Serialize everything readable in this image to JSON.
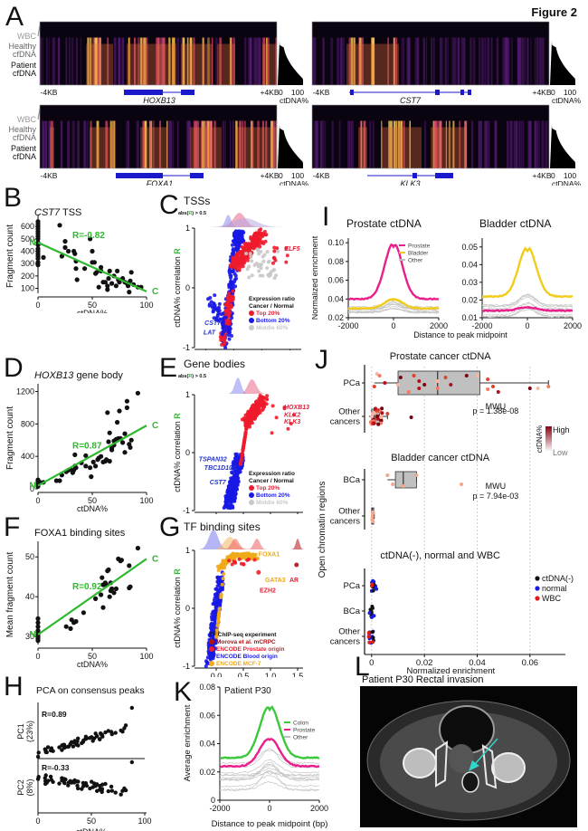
{
  "figure_title": "Figure 2",
  "panel_letters": [
    "A",
    "B",
    "C",
    "D",
    "E",
    "F",
    "G",
    "H",
    "I",
    "J",
    "K",
    "L"
  ],
  "panel_A": {
    "row_labels": {
      "wbc": "WBC",
      "healthy": "Healthy\ncfDNA",
      "patient": "Patient\ncfDNA"
    },
    "heatmaps": [
      {
        "gene": "HOXB13",
        "left": "-4KB",
        "right": "+4KB",
        "bar_min": "0",
        "bar_max": "100",
        "bar_label": "ctDNA%"
      },
      {
        "gene": "CST7",
        "left": "-4KB",
        "right": "+4KB",
        "bar_min": "0",
        "bar_max": "100",
        "bar_label": "ctDNA%"
      },
      {
        "gene": "FOXA1",
        "left": "-4KB",
        "right": "+4KB",
        "bar_min": "0",
        "bar_max": "100",
        "bar_label": "ctDNA%"
      },
      {
        "gene": "KLK3",
        "left": "-4KB",
        "right": "+4KB",
        "bar_min": "0",
        "bar_max": "100",
        "bar_label": "ctDNA%"
      }
    ]
  },
  "chart_data": [
    {
      "id": "B",
      "type": "scatter",
      "title_gene": "CST7",
      "title_rest": " TSS",
      "xlabel": "ctDNA%",
      "ylabel": "Fragment count",
      "xlim": [
        0,
        100
      ],
      "ylim": [
        60,
        660
      ],
      "xticks": [
        0,
        50,
        100
      ],
      "yticks": [
        100,
        200,
        300,
        400,
        500,
        600
      ],
      "annotation": "R=-0.82",
      "line": [
        [
          0,
          470
        ],
        [
          100,
          75
        ]
      ],
      "line_start": "N",
      "line_end": "C",
      "points": [
        [
          0,
          640
        ],
        [
          0,
          620
        ],
        [
          0,
          600
        ],
        [
          0,
          580
        ],
        [
          0,
          560
        ],
        [
          0,
          540
        ],
        [
          0,
          520
        ],
        [
          0,
          500
        ],
        [
          0,
          470
        ],
        [
          0,
          450
        ],
        [
          0,
          420
        ],
        [
          0,
          400
        ],
        [
          0,
          380
        ],
        [
          0,
          360
        ],
        [
          0,
          340
        ],
        [
          0,
          310
        ],
        [
          0,
          290
        ],
        [
          5,
          350
        ],
        [
          20,
          610
        ],
        [
          22,
          360
        ],
        [
          25,
          430
        ],
        [
          25,
          480
        ],
        [
          28,
          400
        ],
        [
          33,
          400
        ],
        [
          34,
          380
        ],
        [
          35,
          260
        ],
        [
          35,
          320
        ],
        [
          36,
          170
        ],
        [
          43,
          260
        ],
        [
          48,
          500
        ],
        [
          50,
          310
        ],
        [
          50,
          400
        ],
        [
          52,
          310
        ],
        [
          53,
          220
        ],
        [
          54,
          230
        ],
        [
          56,
          110
        ],
        [
          58,
          270
        ],
        [
          58,
          240
        ],
        [
          60,
          150
        ],
        [
          62,
          150
        ],
        [
          64,
          120
        ],
        [
          64,
          90
        ],
        [
          65,
          180
        ],
        [
          66,
          240
        ],
        [
          68,
          140
        ],
        [
          70,
          200
        ],
        [
          72,
          120
        ],
        [
          73,
          240
        ],
        [
          74,
          170
        ],
        [
          75,
          150
        ],
        [
          78,
          180
        ],
        [
          80,
          150
        ],
        [
          82,
          140
        ],
        [
          83,
          120
        ],
        [
          84,
          70
        ],
        [
          85,
          160
        ],
        [
          86,
          230
        ],
        [
          88,
          130
        ],
        [
          92,
          110
        ],
        [
          95,
          110
        ]
      ]
    },
    {
      "id": "D",
      "type": "scatter",
      "title_gene": "HOXB13",
      "title_rest": " gene body",
      "xlabel": "ctDNA%",
      "ylabel": "Fragment count",
      "xlim": [
        0,
        100
      ],
      "ylim": [
        0,
        1250
      ],
      "xticks": [
        0,
        50,
        100
      ],
      "yticks": [
        0,
        400,
        800,
        1200
      ],
      "annotation": "R=0.87",
      "line": [
        [
          0,
          40
        ],
        [
          100,
          780
        ]
      ],
      "line_start": "N",
      "line_end": "C",
      "points": [
        [
          0,
          110
        ],
        [
          0,
          90
        ],
        [
          0,
          70
        ],
        [
          0,
          50
        ],
        [
          0,
          30
        ],
        [
          2,
          80
        ],
        [
          5,
          80
        ],
        [
          17,
          100
        ],
        [
          20,
          100
        ],
        [
          22,
          170
        ],
        [
          26,
          210
        ],
        [
          28,
          230
        ],
        [
          30,
          240
        ],
        [
          32,
          200
        ],
        [
          33,
          230
        ],
        [
          34,
          280
        ],
        [
          35,
          260
        ],
        [
          34,
          420
        ],
        [
          40,
          320
        ],
        [
          44,
          410
        ],
        [
          44,
          280
        ],
        [
          48,
          260
        ],
        [
          49,
          150
        ],
        [
          51,
          330
        ],
        [
          53,
          280
        ],
        [
          55,
          360
        ],
        [
          56,
          380
        ],
        [
          58,
          400
        ],
        [
          60,
          330
        ],
        [
          62,
          340
        ],
        [
          63,
          360
        ],
        [
          64,
          940
        ],
        [
          65,
          580
        ],
        [
          66,
          340
        ],
        [
          66,
          690
        ],
        [
          68,
          500
        ],
        [
          68,
          480
        ],
        [
          70,
          540
        ],
        [
          70,
          590
        ],
        [
          72,
          610
        ],
        [
          73,
          820
        ],
        [
          74,
          620
        ],
        [
          75,
          960
        ],
        [
          76,
          620
        ],
        [
          78,
          570
        ],
        [
          80,
          450
        ],
        [
          80,
          680
        ],
        [
          82,
          1080
        ],
        [
          82,
          1000
        ],
        [
          84,
          550
        ],
        [
          85,
          510
        ],
        [
          86,
          600
        ],
        [
          92,
          1180
        ]
      ]
    },
    {
      "id": "F",
      "type": "scatter",
      "title": "FOXA1 binding sites",
      "xlabel": "ctDNA%",
      "ylabel": "Mean fragment count",
      "xlim": [
        0,
        100
      ],
      "ylim": [
        28,
        53
      ],
      "xticks": [
        0,
        50,
        100
      ],
      "yticks": [
        30,
        40,
        50
      ],
      "annotation": "R=0.92",
      "line": [
        [
          0,
          30.5
        ],
        [
          100,
          49.5
        ]
      ],
      "line_start": "N",
      "line_end": "C",
      "points": [
        [
          0,
          34.5
        ],
        [
          0,
          33.5
        ],
        [
          0,
          32.5
        ],
        [
          0,
          31.5
        ],
        [
          0,
          31
        ],
        [
          0,
          30.5
        ],
        [
          0,
          30
        ],
        [
          0,
          29.5
        ],
        [
          0,
          29
        ],
        [
          26,
          32.5
        ],
        [
          30,
          32
        ],
        [
          31,
          34.2
        ],
        [
          33,
          33.5
        ],
        [
          35,
          33.8
        ],
        [
          42,
          36
        ],
        [
          53,
          39.5
        ],
        [
          58,
          40.5
        ],
        [
          59,
          44.8
        ],
        [
          60,
          43
        ],
        [
          60,
          37.3
        ],
        [
          62,
          43.5
        ],
        [
          63,
          43
        ],
        [
          64,
          46.5
        ],
        [
          65,
          46.8
        ],
        [
          66,
          40
        ],
        [
          67,
          41.5
        ],
        [
          67,
          43.5
        ],
        [
          68,
          42
        ],
        [
          70,
          41
        ],
        [
          72,
          42
        ],
        [
          74,
          49.5
        ],
        [
          76,
          49
        ],
        [
          77,
          49.2
        ],
        [
          84,
          47.8
        ],
        [
          84,
          42.2
        ],
        [
          85,
          42.5
        ],
        [
          92,
          52.2
        ]
      ]
    },
    {
      "id": "C",
      "type": "scatter",
      "title": "TSSs",
      "subtitle": "abs(R) > 0.5",
      "xlabel": "log2(Cancer count C / Normal count N)",
      "ylabel": "ctDNA% correlation R",
      "xlim": [
        -7,
        12
      ],
      "ylim": [
        -1,
        1
      ],
      "xticks": [
        -5,
        0,
        5,
        10
      ],
      "yticks": [
        -1,
        0,
        1
      ],
      "labels": [
        {
          "text": "ELF5",
          "x": 9,
          "y": 0.62,
          "color": "#e0203a"
        },
        {
          "text": "CST7",
          "x": -5.2,
          "y": -0.62,
          "color": "#2233cc"
        },
        {
          "text": "LAT",
          "x": -5.4,
          "y": -0.78,
          "color": "#2233cc"
        }
      ],
      "legend": {
        "title": "Expression ratio\nCancer / Normal",
        "items": [
          {
            "label": "Top 20%",
            "color": "#ee1c2e"
          },
          {
            "label": "Bottom 20%",
            "color": "#1a1ae6"
          },
          {
            "label": "Middle 60%",
            "color": "#c8c8c8"
          }
        ]
      }
    },
    {
      "id": "E",
      "type": "scatter",
      "title": "Gene bodies",
      "subtitle": "abs(R) > 0.5",
      "xlabel": "log2(Cancer count C / Normal count N)",
      "ylabel": "ctDNA% correlation R",
      "xlim": [
        -9,
        11
      ],
      "ylim": [
        -1,
        1
      ],
      "xticks": [
        -5,
        0,
        5,
        10
      ],
      "yticks": [
        -1,
        0,
        1
      ],
      "labels": [
        {
          "text": "HOXB13",
          "x": 7.5,
          "y": 0.75,
          "color": "#e0203a"
        },
        {
          "text": "KLK2",
          "x": 7.5,
          "y": 0.62,
          "color": "#e0203a"
        },
        {
          "text": "KLK3",
          "x": 7.5,
          "y": 0.5,
          "color": "#e0203a"
        },
        {
          "text": "TSPAN32",
          "x": -8.2,
          "y": -0.15,
          "color": "#2233cc"
        },
        {
          "text": "TBC1D10C",
          "x": -7.2,
          "y": -0.3,
          "color": "#2233cc"
        },
        {
          "text": "CST7",
          "x": -6.2,
          "y": -0.55,
          "color": "#2233cc"
        }
      ],
      "legend": {
        "title": "Expression ratio\nCancer / Normal",
        "items": [
          {
            "label": "Top 20%",
            "color": "#ee1c2e"
          },
          {
            "label": "Bottom 20%",
            "color": "#1a1ae6"
          },
          {
            "label": "Middle 60%",
            "color": "#c8c8c8"
          }
        ]
      }
    },
    {
      "id": "G",
      "type": "scatter",
      "title": "TF binding sites",
      "xlabel": "log2(Cancer count C / Normal count N)",
      "ylabel": "ctDNA% correlation R",
      "xlim": [
        -0.4,
        1.6
      ],
      "ylim": [
        -1,
        1
      ],
      "xticks": [
        0.0,
        0.5,
        1.0,
        1.5
      ],
      "yticks": [
        -1,
        0,
        1
      ],
      "labels": [
        {
          "text": "FOXA1",
          "x": 0.78,
          "y": 0.9,
          "color": "#f0a818"
        },
        {
          "text": "GATA3",
          "x": 0.9,
          "y": 0.45,
          "color": "#f0a818"
        },
        {
          "text": "AR",
          "x": 1.35,
          "y": 0.45,
          "color": "#e0203a"
        },
        {
          "text": "EZH2",
          "x": 0.8,
          "y": 0.27,
          "color": "#e0203a"
        }
      ],
      "legend": {
        "title": "TF ChIP-seq experiment",
        "items": [
          {
            "label": "Morova et al. mCRPC",
            "color": "#b01010"
          },
          {
            "label": "ENCODE Prostate origin",
            "color": "#ee1c2e"
          },
          {
            "label": "ENCODE Blood origin",
            "color": "#1a1ae6"
          },
          {
            "label": "ENCODE MCF-7",
            "color": "#f0a818"
          }
        ]
      }
    },
    {
      "id": "H",
      "type": "scatter",
      "title": "PCA on consensus peaks",
      "xlabel": "ctDNA%",
      "xlim": [
        0,
        100
      ],
      "xticks": [
        0,
        50,
        100
      ],
      "subplots": [
        {
          "ylabel": "PC1\n(23%)",
          "annotation": "R=0.89"
        },
        {
          "ylabel": "PC2\n(8%)",
          "annotation": "R=-0.33"
        }
      ]
    },
    {
      "id": "I1",
      "type": "line",
      "title": "Prostate ctDNA",
      "ylabel": "Normalized enrichment",
      "xlim": [
        -2000,
        2000
      ],
      "ylim": [
        0.02,
        0.105
      ],
      "xticks": [
        -2000,
        0,
        2000
      ],
      "yticks": [
        0.02,
        0.04,
        0.06,
        0.08,
        0.1
      ],
      "legend": [
        {
          "label": "Prostate",
          "color": "#ea1f8c"
        },
        {
          "label": "Bladder",
          "color": "#f2cc1a"
        },
        {
          "label": "Other",
          "color": "#bdbdbd"
        }
      ],
      "series": [
        {
          "name": "Prostate",
          "base": 0.04,
          "peak": 0.1
        },
        {
          "name": "Bladder",
          "base": 0.03,
          "peak": 0.04
        }
      ]
    },
    {
      "id": "I2",
      "type": "line",
      "title": "Bladder ctDNA",
      "xlabel": "Distance to peak midpoint",
      "xlim": [
        -2000,
        2000
      ],
      "ylim": [
        0.01,
        0.055
      ],
      "xticks": [
        -2000,
        0,
        2000
      ],
      "yticks": [
        0.01,
        0.02,
        0.03,
        0.04,
        0.05
      ],
      "series": [
        {
          "name": "Bladder",
          "base": 0.022,
          "peak": 0.05
        },
        {
          "name": "Prostate",
          "base": 0.014,
          "peak": 0.016
        }
      ]
    },
    {
      "id": "J",
      "type": "box",
      "xlabel": "Normalized enrichment",
      "ylabel": "Open chromatin regions",
      "xlim": [
        -0.002,
        0.07
      ],
      "xticks": [
        0,
        0.02,
        0.04,
        0.06
      ],
      "subpanels": [
        {
          "title": "Prostate cancer ctDNA",
          "groups": [
            "PCa",
            "Other\ncancers"
          ],
          "stat": "MWU\np = 1.38e-08"
        },
        {
          "title": "Bladder cancer ctDNA",
          "groups": [
            "BCa",
            "Other\ncancers"
          ],
          "stat": "MWU\np = 7.94e-03"
        },
        {
          "title": "ctDNA(-), normal and WBC",
          "groups": [
            "PCa",
            "BCa",
            "Other\ncancers"
          ]
        }
      ],
      "colorbar": {
        "label": "ctDNA%",
        "high": "High",
        "low": "Low"
      },
      "legend": [
        {
          "label": "ctDNA(-)",
          "color": "#111111"
        },
        {
          "label": "normal",
          "color": "#1a1ae6"
        },
        {
          "label": "WBC",
          "color": "#e31a1c"
        }
      ]
    },
    {
      "id": "K",
      "type": "line",
      "title": "Patient P30",
      "xlabel": "Distance to peak midpoint (bp)",
      "ylabel": "Average enrichment",
      "xlim": [
        -2000,
        2000
      ],
      "ylim": [
        0,
        0.08
      ],
      "xticks": [
        -2000,
        0,
        2000
      ],
      "yticks": [
        0,
        0.02,
        0.04,
        0.06,
        0.08
      ],
      "legend": [
        {
          "label": "Colon",
          "color": "#3cc83c"
        },
        {
          "label": "Prostate",
          "color": "#ea1f8c"
        },
        {
          "label": "Other",
          "color": "#bdbdbd"
        }
      ],
      "series": [
        {
          "name": "Colon",
          "base": 0.03,
          "peak": 0.067
        },
        {
          "name": "Prostate",
          "base": 0.024,
          "peak": 0.044
        }
      ]
    }
  ],
  "panel_L": {
    "title": "Patient P30 Rectal invasion",
    "image": "CT scan pelvis",
    "arrow_color": "#30d5c8"
  },
  "tick_label_format": {
    "J": [
      "0",
      "0.02",
      "0.04",
      "0.06"
    ],
    "I1": [
      "0.02",
      "0.04",
      "0.06",
      "0.08",
      "0.10"
    ],
    "I2": [
      "0.01",
      "0.02",
      "0.03",
      "0.04",
      "0.05"
    ],
    "K": [
      "0",
      "0.02",
      "0.04",
      "0.06",
      "0.08"
    ]
  }
}
